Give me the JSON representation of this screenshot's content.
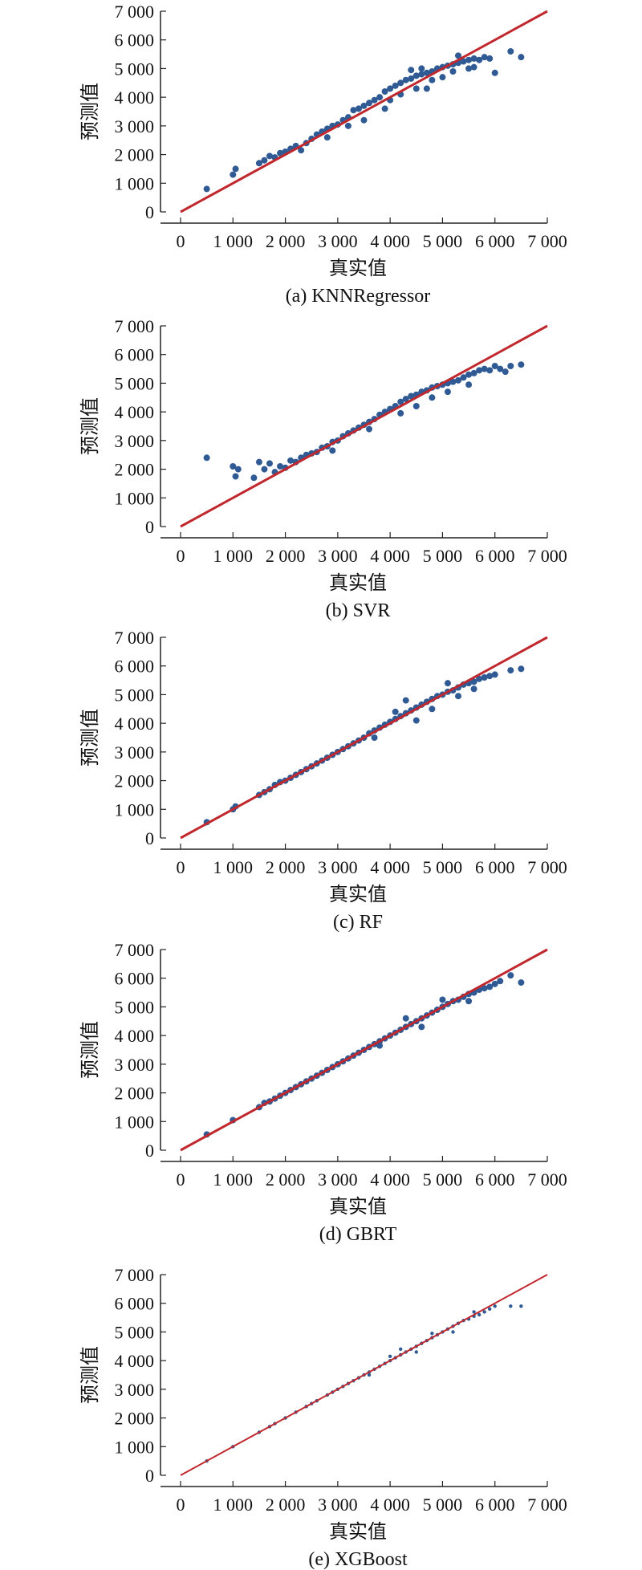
{
  "chart_data": [
    {
      "type": "scatter",
      "caption": "(a) KNNRegressor",
      "xlabel": "真实值",
      "ylabel": "预测值",
      "xlim": [
        0,
        7000
      ],
      "ylim": [
        0,
        7000
      ],
      "xticks": [
        "0",
        "1 000",
        "2 000",
        "3 000",
        "4 000",
        "5 000",
        "6 000",
        "7 000"
      ],
      "yticks": [
        "0",
        "1 000",
        "2 000",
        "3 000",
        "4 000",
        "5 000",
        "6 000",
        "7 000"
      ],
      "reference_line": [
        [
          0,
          0
        ],
        [
          7000,
          7000
        ]
      ],
      "point_color": "#2f5a94",
      "line_color": "#c0282e",
      "point_radius": 4,
      "line_width": 3,
      "points": [
        [
          500,
          800
        ],
        [
          1000,
          1300
        ],
        [
          1050,
          1500
        ],
        [
          1500,
          1700
        ],
        [
          1600,
          1800
        ],
        [
          1700,
          1950
        ],
        [
          1800,
          1900
        ],
        [
          1900,
          2050
        ],
        [
          2000,
          2100
        ],
        [
          2100,
          2200
        ],
        [
          2200,
          2300
        ],
        [
          2300,
          2150
        ],
        [
          2400,
          2400
        ],
        [
          2500,
          2550
        ],
        [
          2600,
          2700
        ],
        [
          2700,
          2800
        ],
        [
          2800,
          2900
        ],
        [
          2900,
          3000
        ],
        [
          3000,
          3050
        ],
        [
          3100,
          3200
        ],
        [
          3200,
          3300
        ],
        [
          3300,
          3550
        ],
        [
          3400,
          3600
        ],
        [
          3500,
          3700
        ],
        [
          3600,
          3800
        ],
        [
          3700,
          3900
        ],
        [
          3800,
          4000
        ],
        [
          3900,
          4200
        ],
        [
          4000,
          4300
        ],
        [
          4100,
          4400
        ],
        [
          4200,
          4500
        ],
        [
          4300,
          4600
        ],
        [
          4400,
          4650
        ],
        [
          4500,
          4750
        ],
        [
          4600,
          4800
        ],
        [
          4700,
          4850
        ],
        [
          4800,
          4900
        ],
        [
          4900,
          5000
        ],
        [
          5000,
          5050
        ],
        [
          5100,
          5100
        ],
        [
          5200,
          5150
        ],
        [
          5300,
          5200
        ],
        [
          5400,
          5250
        ],
        [
          5500,
          5300
        ],
        [
          5600,
          5350
        ],
        [
          5700,
          5300
        ],
        [
          5800,
          5400
        ],
        [
          5900,
          5350
        ],
        [
          6000,
          4850
        ],
        [
          6300,
          5600
        ],
        [
          6500,
          5400
        ],
        [
          3500,
          3200
        ],
        [
          4000,
          3900
        ],
        [
          4200,
          4100
        ],
        [
          4500,
          4300
        ],
        [
          4800,
          4600
        ],
        [
          5000,
          4700
        ],
        [
          5200,
          4900
        ],
        [
          5500,
          5000
        ],
        [
          2800,
          2600
        ],
        [
          3200,
          3000
        ],
        [
          4400,
          4950
        ],
        [
          4600,
          5000
        ],
        [
          4700,
          4300
        ],
        [
          3900,
          3600
        ],
        [
          5300,
          5450
        ],
        [
          5600,
          5050
        ]
      ]
    },
    {
      "type": "scatter",
      "caption": "(b) SVR",
      "xlabel": "真实值",
      "ylabel": "预测值",
      "xlim": [
        0,
        7000
      ],
      "ylim": [
        0,
        7000
      ],
      "xticks": [
        "0",
        "1 000",
        "2 000",
        "3 000",
        "4 000",
        "5 000",
        "6 000",
        "7 000"
      ],
      "yticks": [
        "0",
        "1 000",
        "2 000",
        "3 000",
        "4 000",
        "5 000",
        "6 000",
        "7 000"
      ],
      "reference_line": [
        [
          0,
          0
        ],
        [
          7000,
          7000
        ]
      ],
      "point_color": "#2f5a94",
      "line_color": "#c0282e",
      "point_radius": 4,
      "line_width": 3,
      "points": [
        [
          500,
          2400
        ],
        [
          1000,
          2100
        ],
        [
          1050,
          1750
        ],
        [
          1100,
          2000
        ],
        [
          1400,
          1700
        ],
        [
          1500,
          2250
        ],
        [
          1600,
          2000
        ],
        [
          1700,
          2200
        ],
        [
          1800,
          1900
        ],
        [
          1900,
          2100
        ],
        [
          2000,
          2050
        ],
        [
          2100,
          2300
        ],
        [
          2200,
          2250
        ],
        [
          2300,
          2400
        ],
        [
          2400,
          2500
        ],
        [
          2500,
          2550
        ],
        [
          2600,
          2600
        ],
        [
          2700,
          2750
        ],
        [
          2800,
          2800
        ],
        [
          2900,
          2950
        ],
        [
          3000,
          3000
        ],
        [
          3100,
          3150
        ],
        [
          3200,
          3250
        ],
        [
          3300,
          3350
        ],
        [
          3400,
          3450
        ],
        [
          3500,
          3550
        ],
        [
          3600,
          3650
        ],
        [
          3700,
          3750
        ],
        [
          3800,
          3900
        ],
        [
          3900,
          4000
        ],
        [
          4000,
          4100
        ],
        [
          4100,
          4200
        ],
        [
          4200,
          4350
        ],
        [
          4300,
          4450
        ],
        [
          4400,
          4550
        ],
        [
          4500,
          4600
        ],
        [
          4600,
          4700
        ],
        [
          4700,
          4750
        ],
        [
          4800,
          4850
        ],
        [
          4900,
          4900
        ],
        [
          5000,
          4950
        ],
        [
          5100,
          5000
        ],
        [
          5200,
          5050
        ],
        [
          5300,
          5100
        ],
        [
          5400,
          5200
        ],
        [
          5500,
          5300
        ],
        [
          5600,
          5350
        ],
        [
          5700,
          5450
        ],
        [
          5800,
          5500
        ],
        [
          5900,
          5450
        ],
        [
          6000,
          5600
        ],
        [
          6100,
          5500
        ],
        [
          6300,
          5600
        ],
        [
          6500,
          5650
        ],
        [
          6200,
          5400
        ],
        [
          4500,
          4200
        ],
        [
          4800,
          4500
        ],
        [
          5100,
          4700
        ],
        [
          5500,
          4950
        ],
        [
          2900,
          2650
        ],
        [
          3600,
          3400
        ],
        [
          4200,
          3950
        ]
      ]
    },
    {
      "type": "scatter",
      "caption": "(c) RF",
      "xlabel": "真实值",
      "ylabel": "预测值",
      "xlim": [
        0,
        7000
      ],
      "ylim": [
        0,
        7000
      ],
      "xticks": [
        "0",
        "1 000",
        "2 000",
        "3 000",
        "4 000",
        "5 000",
        "6 000",
        "7 000"
      ],
      "yticks": [
        "0",
        "1 000",
        "2 000",
        "3 000",
        "4 000",
        "5 000",
        "6 000",
        "7 000"
      ],
      "reference_line": [
        [
          0,
          0
        ],
        [
          7000,
          7000
        ]
      ],
      "point_color": "#2f5a94",
      "line_color": "#c0282e",
      "point_radius": 4,
      "line_width": 3,
      "points": [
        [
          500,
          550
        ],
        [
          1000,
          1000
        ],
        [
          1050,
          1100
        ],
        [
          1500,
          1500
        ],
        [
          1600,
          1600
        ],
        [
          1700,
          1700
        ],
        [
          1800,
          1850
        ],
        [
          1900,
          1950
        ],
        [
          2000,
          2000
        ],
        [
          2100,
          2100
        ],
        [
          2200,
          2200
        ],
        [
          2300,
          2300
        ],
        [
          2400,
          2400
        ],
        [
          2500,
          2500
        ],
        [
          2600,
          2600
        ],
        [
          2700,
          2700
        ],
        [
          2800,
          2800
        ],
        [
          2900,
          2900
        ],
        [
          3000,
          3000
        ],
        [
          3100,
          3100
        ],
        [
          3200,
          3200
        ],
        [
          3300,
          3300
        ],
        [
          3400,
          3400
        ],
        [
          3500,
          3500
        ],
        [
          3600,
          3650
        ],
        [
          3700,
          3750
        ],
        [
          3800,
          3850
        ],
        [
          3900,
          3950
        ],
        [
          4000,
          4050
        ],
        [
          4100,
          4150
        ],
        [
          4200,
          4250
        ],
        [
          4300,
          4350
        ],
        [
          4400,
          4450
        ],
        [
          4500,
          4550
        ],
        [
          4600,
          4650
        ],
        [
          4700,
          4750
        ],
        [
          4800,
          4850
        ],
        [
          4900,
          4950
        ],
        [
          5000,
          5000
        ],
        [
          5100,
          5100
        ],
        [
          5200,
          5150
        ],
        [
          5300,
          5250
        ],
        [
          5400,
          5350
        ],
        [
          5500,
          5400
        ],
        [
          5600,
          5450
        ],
        [
          5700,
          5550
        ],
        [
          5800,
          5600
        ],
        [
          5900,
          5650
        ],
        [
          6000,
          5700
        ],
        [
          6300,
          5850
        ],
        [
          6500,
          5900
        ],
        [
          4300,
          4800
        ],
        [
          4500,
          4100
        ],
        [
          4800,
          4500
        ],
        [
          5100,
          5400
        ],
        [
          3700,
          3500
        ],
        [
          4100,
          4400
        ],
        [
          5300,
          4950
        ],
        [
          5600,
          5200
        ]
      ]
    },
    {
      "type": "scatter",
      "caption": "(d) GBRT",
      "xlabel": "真实值",
      "ylabel": "预测值",
      "xlim": [
        0,
        7000
      ],
      "ylim": [
        0,
        7000
      ],
      "xticks": [
        "0",
        "1 000",
        "2 000",
        "3 000",
        "4 000",
        "5 000",
        "6 000",
        "7 000"
      ],
      "yticks": [
        "0",
        "1 000",
        "2 000",
        "3 000",
        "4 000",
        "5 000",
        "6 000",
        "7 000"
      ],
      "reference_line": [
        [
          0,
          0
        ],
        [
          7000,
          7000
        ]
      ],
      "point_color": "#2f5a94",
      "line_color": "#c0282e",
      "point_radius": 4,
      "line_width": 3,
      "points": [
        [
          500,
          550
        ],
        [
          1000,
          1050
        ],
        [
          1500,
          1500
        ],
        [
          1600,
          1650
        ],
        [
          1700,
          1700
        ],
        [
          1800,
          1800
        ],
        [
          1900,
          1900
        ],
        [
          2000,
          2000
        ],
        [
          2100,
          2100
        ],
        [
          2200,
          2200
        ],
        [
          2300,
          2300
        ],
        [
          2400,
          2400
        ],
        [
          2500,
          2500
        ],
        [
          2600,
          2600
        ],
        [
          2700,
          2700
        ],
        [
          2800,
          2800
        ],
        [
          2900,
          2900
        ],
        [
          3000,
          3000
        ],
        [
          3100,
          3100
        ],
        [
          3200,
          3200
        ],
        [
          3300,
          3300
        ],
        [
          3400,
          3400
        ],
        [
          3500,
          3500
        ],
        [
          3600,
          3600
        ],
        [
          3700,
          3700
        ],
        [
          3800,
          3800
        ],
        [
          3900,
          3900
        ],
        [
          4000,
          4000
        ],
        [
          4100,
          4100
        ],
        [
          4200,
          4200
        ],
        [
          4300,
          4300
        ],
        [
          4400,
          4400
        ],
        [
          4500,
          4500
        ],
        [
          4600,
          4600
        ],
        [
          4700,
          4700
        ],
        [
          4800,
          4800
        ],
        [
          4900,
          4900
        ],
        [
          5000,
          5000
        ],
        [
          5100,
          5100
        ],
        [
          5200,
          5200
        ],
        [
          5300,
          5250
        ],
        [
          5400,
          5350
        ],
        [
          5500,
          5450
        ],
        [
          5600,
          5500
        ],
        [
          5700,
          5600
        ],
        [
          5800,
          5650
        ],
        [
          5900,
          5700
        ],
        [
          6000,
          5800
        ],
        [
          6300,
          6100
        ],
        [
          6500,
          5850
        ],
        [
          4300,
          4600
        ],
        [
          4600,
          4300
        ],
        [
          5000,
          5250
        ],
        [
          3800,
          3650
        ],
        [
          5500,
          5200
        ],
        [
          6100,
          5900
        ]
      ]
    },
    {
      "type": "scatter",
      "caption": "(e) XGBoost",
      "xlabel": "真实值",
      "ylabel": "预测值",
      "xlim": [
        0,
        7000
      ],
      "ylim": [
        0,
        7000
      ],
      "xticks": [
        "0",
        "1 000",
        "2 000",
        "3 000",
        "4 000",
        "5 000",
        "6 000",
        "7 000"
      ],
      "yticks": [
        "0",
        "1 000",
        "2 000",
        "3 000",
        "4 000",
        "5 000",
        "6 000",
        "7 000"
      ],
      "reference_line": [
        [
          0,
          0
        ],
        [
          7000,
          7000
        ]
      ],
      "point_color": "#2f5a94",
      "line_color": "#c0282e",
      "point_radius": 2.2,
      "line_width": 2,
      "points": [
        [
          500,
          500
        ],
        [
          1000,
          1000
        ],
        [
          1500,
          1500
        ],
        [
          1700,
          1700
        ],
        [
          1800,
          1800
        ],
        [
          2000,
          2000
        ],
        [
          2200,
          2200
        ],
        [
          2400,
          2400
        ],
        [
          2500,
          2500
        ],
        [
          2600,
          2600
        ],
        [
          2800,
          2800
        ],
        [
          2900,
          2900
        ],
        [
          3000,
          3000
        ],
        [
          3100,
          3100
        ],
        [
          3200,
          3200
        ],
        [
          3300,
          3300
        ],
        [
          3400,
          3400
        ],
        [
          3500,
          3500
        ],
        [
          3600,
          3600
        ],
        [
          3700,
          3700
        ],
        [
          3800,
          3800
        ],
        [
          3900,
          3900
        ],
        [
          4000,
          4000
        ],
        [
          4100,
          4100
        ],
        [
          4200,
          4200
        ],
        [
          4300,
          4300
        ],
        [
          4400,
          4400
        ],
        [
          4500,
          4500
        ],
        [
          4600,
          4600
        ],
        [
          4700,
          4700
        ],
        [
          4800,
          4800
        ],
        [
          4900,
          4900
        ],
        [
          5000,
          5000
        ],
        [
          5100,
          5100
        ],
        [
          5200,
          5200
        ],
        [
          5300,
          5300
        ],
        [
          5400,
          5400
        ],
        [
          5500,
          5450
        ],
        [
          5600,
          5550
        ],
        [
          5700,
          5600
        ],
        [
          5800,
          5700
        ],
        [
          5900,
          5800
        ],
        [
          6000,
          5900
        ],
        [
          6300,
          5900
        ],
        [
          6500,
          5900
        ],
        [
          4200,
          4400
        ],
        [
          4500,
          4300
        ],
        [
          4800,
          4950
        ],
        [
          5200,
          5000
        ],
        [
          5600,
          5700
        ],
        [
          3600,
          3500
        ],
        [
          4000,
          4150
        ]
      ]
    }
  ]
}
